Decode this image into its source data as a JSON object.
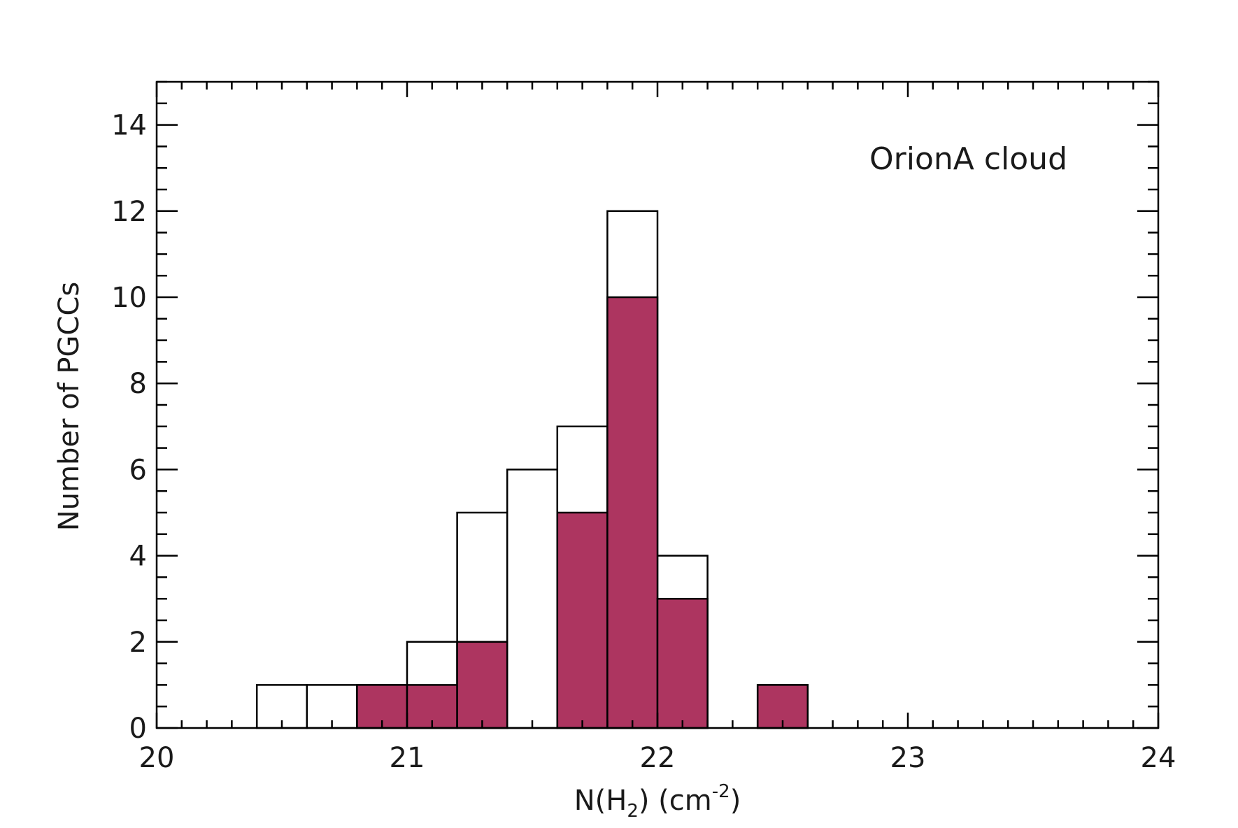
{
  "chart_data": {
    "type": "bar",
    "subtype": "histogram",
    "annotation": "OrionA cloud",
    "xlabel": {
      "base": "N(H",
      "sub": "2",
      "mid": ")  (cm",
      "sup": "-2",
      "end": ")"
    },
    "ylabel": "Number of PGCCs",
    "xlim": [
      20,
      24
    ],
    "ylim": [
      0,
      15
    ],
    "x_ticks": [
      "20",
      "21",
      "22",
      "23",
      "24"
    ],
    "y_ticks": [
      "0",
      "2",
      "4",
      "6",
      "8",
      "10",
      "12",
      "14"
    ],
    "bin_edges": [
      20.0,
      20.2,
      20.4,
      20.6,
      20.8,
      21.0,
      21.2,
      21.4,
      21.6,
      21.8,
      22.0,
      22.2,
      22.4,
      22.6,
      22.8,
      23.0,
      23.2,
      23.4,
      23.6,
      23.8,
      24.0
    ],
    "series": [
      {
        "fill": "none",
        "values": [
          0,
          0,
          1,
          1,
          1,
          2,
          5,
          6,
          7,
          12,
          4,
          0,
          1,
          0,
          0,
          0,
          0,
          0,
          0,
          0
        ]
      },
      {
        "fill": "#ad3560",
        "values": [
          0,
          0,
          0,
          0,
          1,
          1,
          2,
          0,
          5,
          10,
          3,
          0,
          1,
          0,
          0,
          0,
          0,
          0,
          0,
          0
        ]
      }
    ],
    "grid": false,
    "colors": {
      "filled": "#ad3560",
      "outline": "#000000"
    }
  }
}
